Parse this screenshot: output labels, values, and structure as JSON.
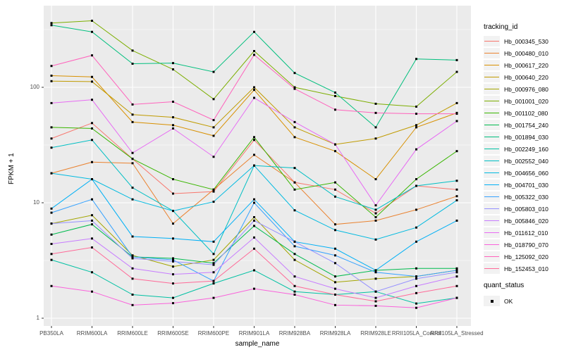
{
  "chart_data": {
    "type": "line",
    "title": "",
    "xlabel": "sample_name",
    "ylabel": "FPKM + 1",
    "y_scale": "log10",
    "y_ticks": [
      "1",
      "10",
      "100"
    ],
    "y_tick_values": [
      1,
      10,
      100
    ],
    "y_minor_tick_values": [
      3.162,
      31.62,
      316.2
    ],
    "ylim": [
      1,
      500
    ],
    "grid": true,
    "panel_background": "#EBEBEB",
    "gridline_color": "#FFFFFF",
    "point_shape": "filled-square",
    "point_color": "#000000",
    "legend_position": "right",
    "legend_title": "tracking_id",
    "categories": [
      "PB350LA",
      "RRIM600LA",
      "RRIM600LE",
      "RRIM600SE",
      "RRIM600PE",
      "RRIM901LA",
      "RRIM928BA",
      "RRIM928LA",
      "RRIM928LE",
      "RRII105LA_Control",
      "RRII105LA_Stressed"
    ],
    "series": [
      {
        "name": "Hb_000345_530",
        "color": "#F8766D",
        "values": [
          36,
          49,
          24,
          12,
          12.5,
          35,
          15,
          13,
          8.1,
          14,
          13
        ]
      },
      {
        "name": "Hb_000480_010",
        "color": "#EA8331",
        "values": [
          18,
          22.5,
          22,
          6.6,
          13,
          26,
          15,
          6.5,
          7,
          8.7,
          11.4
        ]
      },
      {
        "name": "Hb_000617_220",
        "color": "#D89000",
        "values": [
          126,
          123,
          50,
          47,
          38,
          95,
          37,
          28,
          16,
          45,
          60
        ]
      },
      {
        "name": "Hb_000640_220",
        "color": "#C09B00",
        "values": [
          113,
          112,
          58,
          55,
          45,
          100,
          45,
          32,
          36,
          47,
          73
        ]
      },
      {
        "name": "Hb_000976_080",
        "color": "#A3A500",
        "values": [
          6.6,
          7.8,
          3.5,
          2.8,
          3.2,
          7.5,
          3.2,
          2.05,
          2.2,
          2.3,
          2.6
        ]
      },
      {
        "name": "Hb_001001_020",
        "color": "#7CAE00",
        "values": [
          360,
          377,
          208,
          143,
          79,
          206,
          100,
          84,
          72,
          68,
          136
        ]
      },
      {
        "name": "Hb_001102_080",
        "color": "#39B600",
        "values": [
          45,
          44,
          24,
          16,
          13,
          37,
          13,
          15,
          7.5,
          16,
          28
        ]
      },
      {
        "name": "Hb_001754_240",
        "color": "#00BB4E",
        "values": [
          5.3,
          6.5,
          3.4,
          3.3,
          3.0,
          6.3,
          3.6,
          2.3,
          2.6,
          2.7,
          2.7
        ]
      },
      {
        "name": "Hb_001894_030",
        "color": "#00BF7D",
        "values": [
          345,
          302,
          160,
          162,
          136,
          302,
          133,
          90,
          45,
          176,
          172
        ]
      },
      {
        "name": "Hb_002249_160",
        "color": "#00C1A3",
        "values": [
          3.2,
          2.5,
          1.6,
          1.5,
          2.0,
          2.6,
          1.7,
          1.6,
          1.7,
          1.34,
          1.5
        ]
      },
      {
        "name": "Hb_002552_040",
        "color": "#00BFC4",
        "values": [
          30,
          35,
          13.5,
          8.5,
          3.6,
          21,
          20,
          11.3,
          8.7,
          14,
          15.5
        ]
      },
      {
        "name": "Hb_004656_060",
        "color": "#00BAE0",
        "values": [
          18,
          16,
          10.7,
          8.5,
          10.2,
          21,
          8.6,
          5.8,
          4.8,
          6.1,
          10.5
        ]
      },
      {
        "name": "Hb_004701_030",
        "color": "#00B0F6",
        "values": [
          8.9,
          16,
          5.1,
          4.9,
          4.6,
          10.7,
          4.6,
          4.0,
          2.6,
          4.6,
          7.0
        ]
      },
      {
        "name": "Hb_005322_030",
        "color": "#35A2FF",
        "values": [
          8.2,
          10.7,
          3.4,
          3.2,
          2.1,
          10,
          4.2,
          3.5,
          2.5,
          2.3,
          2.6
        ]
      },
      {
        "name": "Hb_005803_010",
        "color": "#9590FF",
        "values": [
          6.6,
          7.0,
          3.3,
          3.1,
          2.9,
          7.0,
          4.6,
          3.0,
          1.7,
          2.2,
          2.5
        ]
      },
      {
        "name": "Hb_005846_020",
        "color": "#C77CFF",
        "values": [
          4.4,
          4.9,
          2.7,
          2.4,
          2.5,
          5.0,
          2.3,
          1.8,
          1.5,
          1.9,
          2.3
        ]
      },
      {
        "name": "Hb_011612_010",
        "color": "#E76BF3",
        "values": [
          73,
          78,
          27,
          44,
          25,
          81,
          50,
          32,
          9.5,
          29,
          51
        ]
      },
      {
        "name": "Hb_018790_070",
        "color": "#FA62DB",
        "values": [
          1.9,
          1.7,
          1.3,
          1.35,
          1.5,
          1.8,
          1.6,
          1.3,
          1.28,
          1.23,
          1.5
        ]
      },
      {
        "name": "Hb_125092_020",
        "color": "#FF62BC",
        "values": [
          153,
          189,
          71,
          75,
          52,
          191,
          97,
          64,
          60,
          59,
          59
        ]
      },
      {
        "name": "Hb_152453_010",
        "color": "#FF6A98",
        "values": [
          3.6,
          4.1,
          2.2,
          2.0,
          2.1,
          4.0,
          1.9,
          1.6,
          1.4,
          1.65,
          1.9
        ]
      }
    ]
  },
  "quant_legend": {
    "title": "quant_status",
    "items": [
      {
        "label": "OK",
        "shape": "filled-square",
        "color": "#000000"
      }
    ]
  }
}
